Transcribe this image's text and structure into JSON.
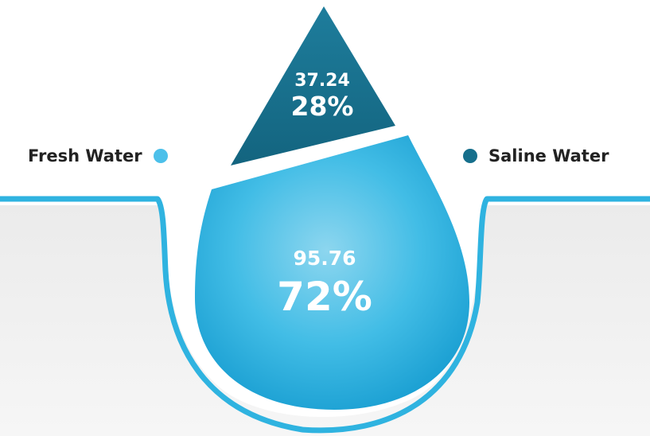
{
  "chart_data": {
    "type": "pie",
    "title": "",
    "series": [
      {
        "name": "Fresh Water",
        "value": 95.76,
        "percent": "72%",
        "color": "#3db9e2"
      },
      {
        "name": "Saline Water",
        "value": 37.24,
        "percent": "28%",
        "color": "#17718f"
      }
    ],
    "legend": [
      {
        "label": "Fresh Water",
        "color": "#4cc0ea"
      },
      {
        "label": "Saline Water",
        "color": "#166f8c"
      }
    ]
  }
}
